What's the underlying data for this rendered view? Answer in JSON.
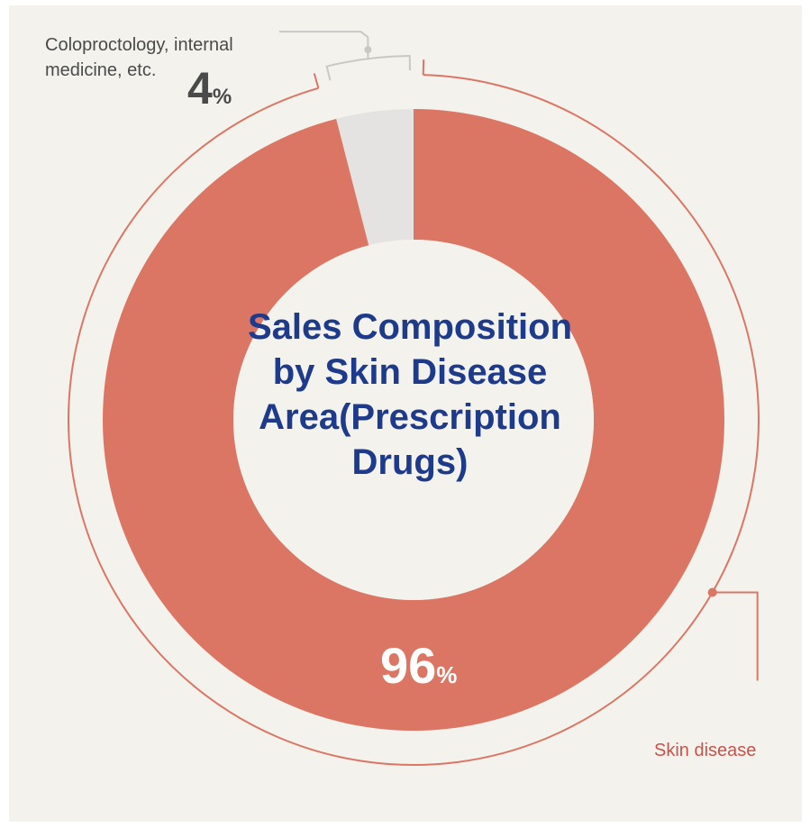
{
  "chart_data": {
    "type": "pie",
    "title": "Sales Composition by Skin Disease Area(Prescription Drugs)",
    "slices": [
      {
        "label": "Skin disease",
        "value": 96,
        "unit": "%",
        "color": "#db7665"
      },
      {
        "label": "Coloproctology, internal medicine, etc.",
        "value": 4,
        "unit": "%",
        "color": "#e4e3e1"
      }
    ]
  },
  "colors": {
    "background": "#f3f2ed",
    "center": "#f3f2ed",
    "accent": "#db7665",
    "leader_gray": "#c9c8c4",
    "title": "#1e3a8a"
  }
}
